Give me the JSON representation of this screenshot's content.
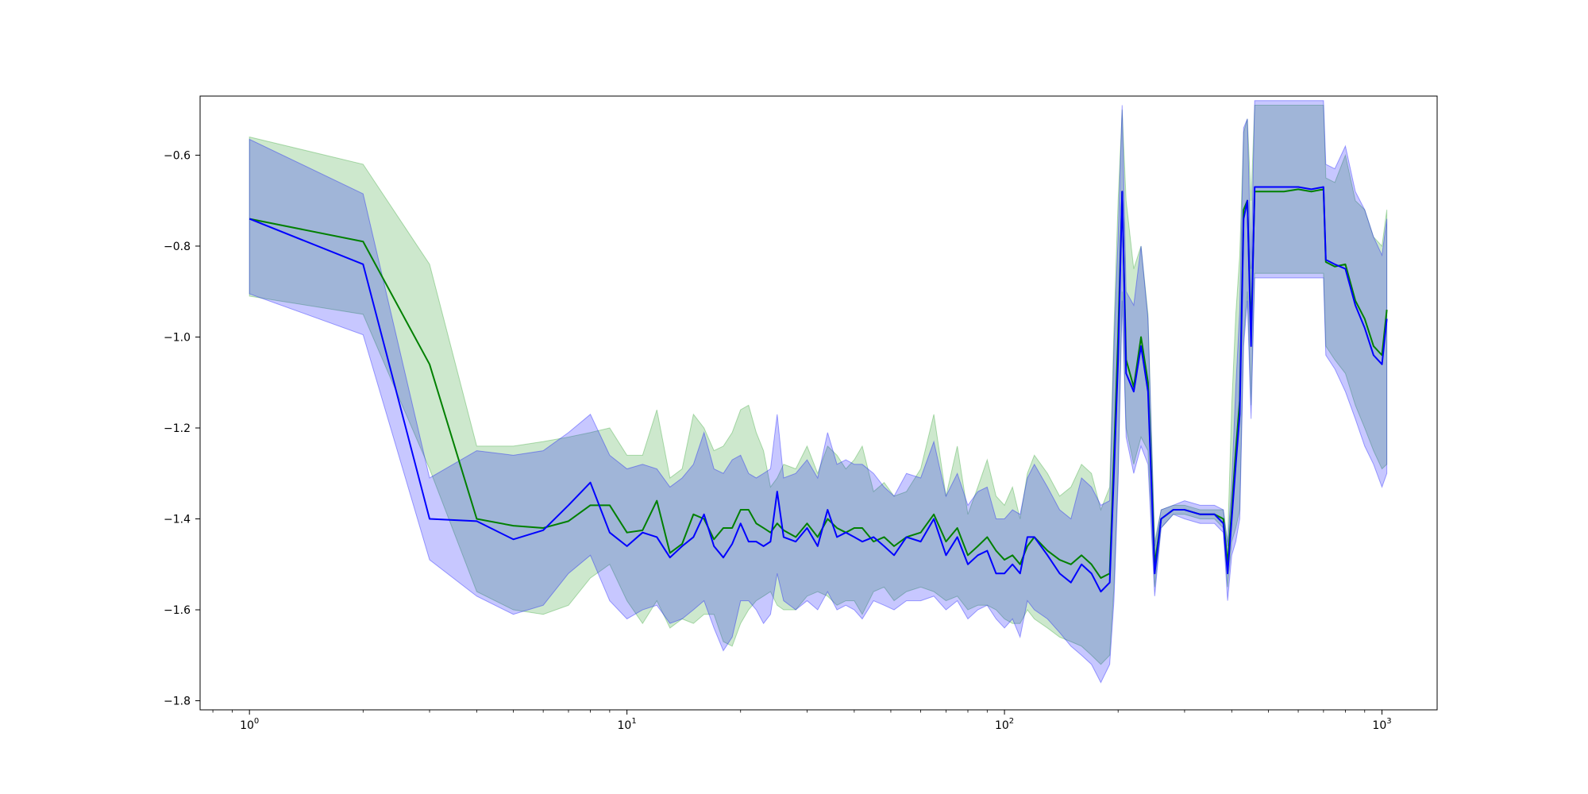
{
  "chart_data": {
    "type": "line",
    "title": "",
    "xlabel": "",
    "ylabel": "",
    "x_scale": "log",
    "xlim": [
      0.74,
      1400
    ],
    "ylim": [
      -1.82,
      -0.47
    ],
    "grid": false,
    "x_ticks": [
      {
        "value": 1,
        "base": "10",
        "exp": "0"
      },
      {
        "value": 10,
        "base": "10",
        "exp": "1"
      },
      {
        "value": 100,
        "base": "10",
        "exp": "2"
      },
      {
        "value": 1000,
        "base": "10",
        "exp": "3"
      }
    ],
    "y_ticks": [
      {
        "value": -0.6,
        "label": "−0.6"
      },
      {
        "value": -0.8,
        "label": "−0.8"
      },
      {
        "value": -1.0,
        "label": "−1.0"
      },
      {
        "value": -1.2,
        "label": "−1.2"
      },
      {
        "value": -1.4,
        "label": "−1.4"
      },
      {
        "value": -1.6,
        "label": "−1.6"
      },
      {
        "value": -1.8,
        "label": "−1.8"
      }
    ],
    "series": [
      {
        "color": "#008000",
        "band_color": "#2ca02c",
        "band_opacity": 0.24,
        "x": [
          1,
          2,
          3,
          4,
          5,
          6,
          7,
          8,
          9,
          10,
          11,
          12,
          13,
          14,
          15,
          16,
          17,
          18,
          19,
          20,
          21,
          22,
          23,
          24,
          25,
          26,
          28,
          30,
          32,
          34,
          36,
          38,
          40,
          42,
          45,
          48,
          51,
          55,
          60,
          65,
          70,
          75,
          80,
          85,
          90,
          95,
          100,
          105,
          110,
          115,
          120,
          130,
          140,
          150,
          160,
          170,
          180,
          190,
          195,
          200,
          205,
          210,
          220,
          230,
          240,
          250,
          260,
          280,
          300,
          330,
          360,
          380,
          390,
          400,
          410,
          420,
          430,
          440,
          450,
          460,
          480,
          500,
          550,
          600,
          650,
          700,
          710,
          750,
          800,
          850,
          900,
          950,
          1000,
          1030
        ],
        "y": [
          -0.74,
          -0.79,
          -1.06,
          -1.4,
          -1.415,
          -1.42,
          -1.405,
          -1.37,
          -1.37,
          -1.43,
          -1.425,
          -1.36,
          -1.475,
          -1.455,
          -1.39,
          -1.4,
          -1.445,
          -1.42,
          -1.42,
          -1.38,
          -1.38,
          -1.41,
          -1.42,
          -1.43,
          -1.41,
          -1.425,
          -1.44,
          -1.41,
          -1.44,
          -1.4,
          -1.42,
          -1.43,
          -1.42,
          -1.42,
          -1.45,
          -1.44,
          -1.46,
          -1.44,
          -1.43,
          -1.39,
          -1.45,
          -1.42,
          -1.48,
          -1.46,
          -1.44,
          -1.47,
          -1.49,
          -1.48,
          -1.5,
          -1.46,
          -1.44,
          -1.47,
          -1.49,
          -1.5,
          -1.48,
          -1.5,
          -1.53,
          -1.52,
          -1.26,
          -1.0,
          -0.68,
          -1.05,
          -1.11,
          -1.0,
          -1.1,
          -1.5,
          -1.4,
          -1.38,
          -1.38,
          -1.39,
          -1.39,
          -1.4,
          -1.5,
          -1.38,
          -1.25,
          -1.14,
          -0.72,
          -0.7,
          -0.99,
          -0.68,
          -0.68,
          -0.68,
          -0.68,
          -0.675,
          -0.68,
          -0.675,
          -0.835,
          -0.845,
          -0.84,
          -0.92,
          -0.96,
          -1.02,
          -1.04,
          -0.94
        ],
        "lower": [
          -0.91,
          -0.95,
          -1.29,
          -1.56,
          -1.6,
          -1.61,
          -1.59,
          -1.53,
          -1.5,
          -1.58,
          -1.63,
          -1.58,
          -1.64,
          -1.62,
          -1.63,
          -1.61,
          -1.61,
          -1.67,
          -1.68,
          -1.63,
          -1.6,
          -1.58,
          -1.57,
          -1.56,
          -1.59,
          -1.6,
          -1.6,
          -1.57,
          -1.56,
          -1.57,
          -1.59,
          -1.58,
          -1.58,
          -1.61,
          -1.56,
          -1.55,
          -1.58,
          -1.56,
          -1.55,
          -1.56,
          -1.58,
          -1.57,
          -1.6,
          -1.59,
          -1.59,
          -1.6,
          -1.62,
          -1.63,
          -1.63,
          -1.6,
          -1.62,
          -1.64,
          -1.66,
          -1.67,
          -1.68,
          -1.7,
          -1.72,
          -1.7,
          -1.55,
          -1.3,
          -0.9,
          -1.2,
          -1.28,
          -1.22,
          -1.25,
          -1.55,
          -1.42,
          -1.39,
          -1.39,
          -1.4,
          -1.4,
          -1.42,
          -1.55,
          -1.45,
          -1.42,
          -1.38,
          -1.0,
          -0.9,
          -1.15,
          -0.86,
          -0.86,
          -0.86,
          -0.86,
          -0.86,
          -0.86,
          -0.86,
          -1.02,
          -1.05,
          -1.08,
          -1.15,
          -1.2,
          -1.25,
          -1.29,
          -1.28
        ],
        "upper": [
          -0.56,
          -0.62,
          -0.84,
          -1.24,
          -1.24,
          -1.23,
          -1.22,
          -1.21,
          -1.2,
          -1.26,
          -1.26,
          -1.16,
          -1.31,
          -1.29,
          -1.17,
          -1.2,
          -1.25,
          -1.24,
          -1.21,
          -1.16,
          -1.15,
          -1.21,
          -1.25,
          -1.33,
          -1.31,
          -1.28,
          -1.29,
          -1.24,
          -1.3,
          -1.24,
          -1.26,
          -1.29,
          -1.27,
          -1.24,
          -1.34,
          -1.32,
          -1.35,
          -1.34,
          -1.29,
          -1.17,
          -1.35,
          -1.24,
          -1.39,
          -1.33,
          -1.27,
          -1.35,
          -1.37,
          -1.33,
          -1.4,
          -1.3,
          -1.26,
          -1.3,
          -1.35,
          -1.33,
          -1.28,
          -1.3,
          -1.38,
          -1.33,
          -0.98,
          -0.7,
          -0.5,
          -0.7,
          -0.85,
          -0.8,
          -0.95,
          -1.45,
          -1.38,
          -1.37,
          -1.37,
          -1.38,
          -1.38,
          -1.38,
          -1.45,
          -1.15,
          -0.95,
          -0.82,
          -0.55,
          -0.52,
          -0.7,
          -0.49,
          -0.49,
          -0.49,
          -0.49,
          -0.49,
          -0.49,
          -0.49,
          -0.65,
          -0.66,
          -0.6,
          -0.7,
          -0.72,
          -0.78,
          -0.8,
          -0.72
        ]
      },
      {
        "color": "#0000ff",
        "band_color": "#0000ff",
        "band_opacity": 0.22,
        "x": [
          1,
          2,
          3,
          4,
          5,
          6,
          7,
          8,
          9,
          10,
          11,
          12,
          13,
          14,
          15,
          16,
          17,
          18,
          19,
          20,
          21,
          22,
          23,
          24,
          25,
          26,
          28,
          30,
          32,
          34,
          36,
          38,
          40,
          42,
          45,
          48,
          51,
          55,
          60,
          65,
          70,
          75,
          80,
          85,
          90,
          95,
          100,
          105,
          110,
          115,
          120,
          130,
          140,
          150,
          160,
          170,
          180,
          190,
          195,
          200,
          205,
          210,
          220,
          230,
          240,
          250,
          260,
          280,
          300,
          330,
          360,
          380,
          390,
          400,
          410,
          420,
          430,
          440,
          450,
          460,
          480,
          500,
          550,
          600,
          650,
          700,
          710,
          750,
          800,
          850,
          900,
          950,
          1000,
          1030
        ],
        "y": [
          -0.74,
          -0.84,
          -1.4,
          -1.405,
          -1.445,
          -1.425,
          -1.37,
          -1.32,
          -1.43,
          -1.46,
          -1.43,
          -1.44,
          -1.485,
          -1.46,
          -1.44,
          -1.39,
          -1.46,
          -1.485,
          -1.455,
          -1.41,
          -1.45,
          -1.45,
          -1.46,
          -1.45,
          -1.34,
          -1.44,
          -1.45,
          -1.42,
          -1.46,
          -1.38,
          -1.44,
          -1.43,
          -1.44,
          -1.45,
          -1.44,
          -1.46,
          -1.48,
          -1.44,
          -1.45,
          -1.4,
          -1.48,
          -1.44,
          -1.5,
          -1.48,
          -1.47,
          -1.52,
          -1.52,
          -1.5,
          -1.52,
          -1.44,
          -1.44,
          -1.48,
          -1.52,
          -1.54,
          -1.5,
          -1.52,
          -1.56,
          -1.54,
          -1.3,
          -1.05,
          -0.68,
          -1.08,
          -1.12,
          -1.02,
          -1.12,
          -1.52,
          -1.4,
          -1.38,
          -1.38,
          -1.39,
          -1.39,
          -1.41,
          -1.52,
          -1.4,
          -1.28,
          -1.17,
          -0.74,
          -0.7,
          -1.02,
          -0.67,
          -0.67,
          -0.67,
          -0.67,
          -0.67,
          -0.675,
          -0.67,
          -0.83,
          -0.84,
          -0.85,
          -0.93,
          -0.98,
          -1.04,
          -1.06,
          -0.96
        ],
        "lower": [
          -0.905,
          -0.995,
          -1.49,
          -1.57,
          -1.61,
          -1.59,
          -1.52,
          -1.48,
          -1.58,
          -1.62,
          -1.6,
          -1.59,
          -1.63,
          -1.62,
          -1.6,
          -1.58,
          -1.64,
          -1.69,
          -1.66,
          -1.58,
          -1.58,
          -1.6,
          -1.63,
          -1.61,
          -1.52,
          -1.58,
          -1.6,
          -1.58,
          -1.6,
          -1.56,
          -1.6,
          -1.59,
          -1.6,
          -1.62,
          -1.58,
          -1.59,
          -1.6,
          -1.58,
          -1.58,
          -1.57,
          -1.6,
          -1.58,
          -1.62,
          -1.6,
          -1.59,
          -1.62,
          -1.64,
          -1.62,
          -1.66,
          -1.58,
          -1.6,
          -1.62,
          -1.65,
          -1.68,
          -1.7,
          -1.72,
          -1.76,
          -1.72,
          -1.58,
          -1.32,
          -0.92,
          -1.22,
          -1.3,
          -1.24,
          -1.28,
          -1.57,
          -1.42,
          -1.39,
          -1.4,
          -1.41,
          -1.41,
          -1.43,
          -1.58,
          -1.48,
          -1.45,
          -1.4,
          -1.02,
          -0.92,
          -1.18,
          -0.87,
          -0.87,
          -0.87,
          -0.87,
          -0.87,
          -0.87,
          -0.87,
          -1.04,
          -1.07,
          -1.12,
          -1.18,
          -1.24,
          -1.28,
          -1.33,
          -1.3
        ],
        "upper": [
          -0.565,
          -0.685,
          -1.31,
          -1.25,
          -1.26,
          -1.25,
          -1.21,
          -1.17,
          -1.26,
          -1.29,
          -1.28,
          -1.29,
          -1.33,
          -1.31,
          -1.28,
          -1.21,
          -1.29,
          -1.3,
          -1.27,
          -1.26,
          -1.3,
          -1.31,
          -1.3,
          -1.29,
          -1.17,
          -1.31,
          -1.3,
          -1.27,
          -1.31,
          -1.21,
          -1.28,
          -1.27,
          -1.28,
          -1.28,
          -1.3,
          -1.33,
          -1.35,
          -1.3,
          -1.31,
          -1.23,
          -1.35,
          -1.3,
          -1.37,
          -1.34,
          -1.33,
          -1.4,
          -1.4,
          -1.38,
          -1.39,
          -1.31,
          -1.28,
          -1.33,
          -1.38,
          -1.4,
          -1.31,
          -1.33,
          -1.37,
          -1.36,
          -1.02,
          -0.78,
          -0.49,
          -0.9,
          -0.93,
          -0.8,
          -0.96,
          -1.46,
          -1.38,
          -1.37,
          -1.36,
          -1.37,
          -1.37,
          -1.38,
          -1.46,
          -1.32,
          -1.11,
          -0.94,
          -0.54,
          -0.52,
          -0.85,
          -0.48,
          -0.48,
          -0.48,
          -0.48,
          -0.48,
          -0.48,
          -0.48,
          -0.62,
          -0.63,
          -0.58,
          -0.68,
          -0.72,
          -0.78,
          -0.82,
          -0.74
        ]
      }
    ]
  }
}
